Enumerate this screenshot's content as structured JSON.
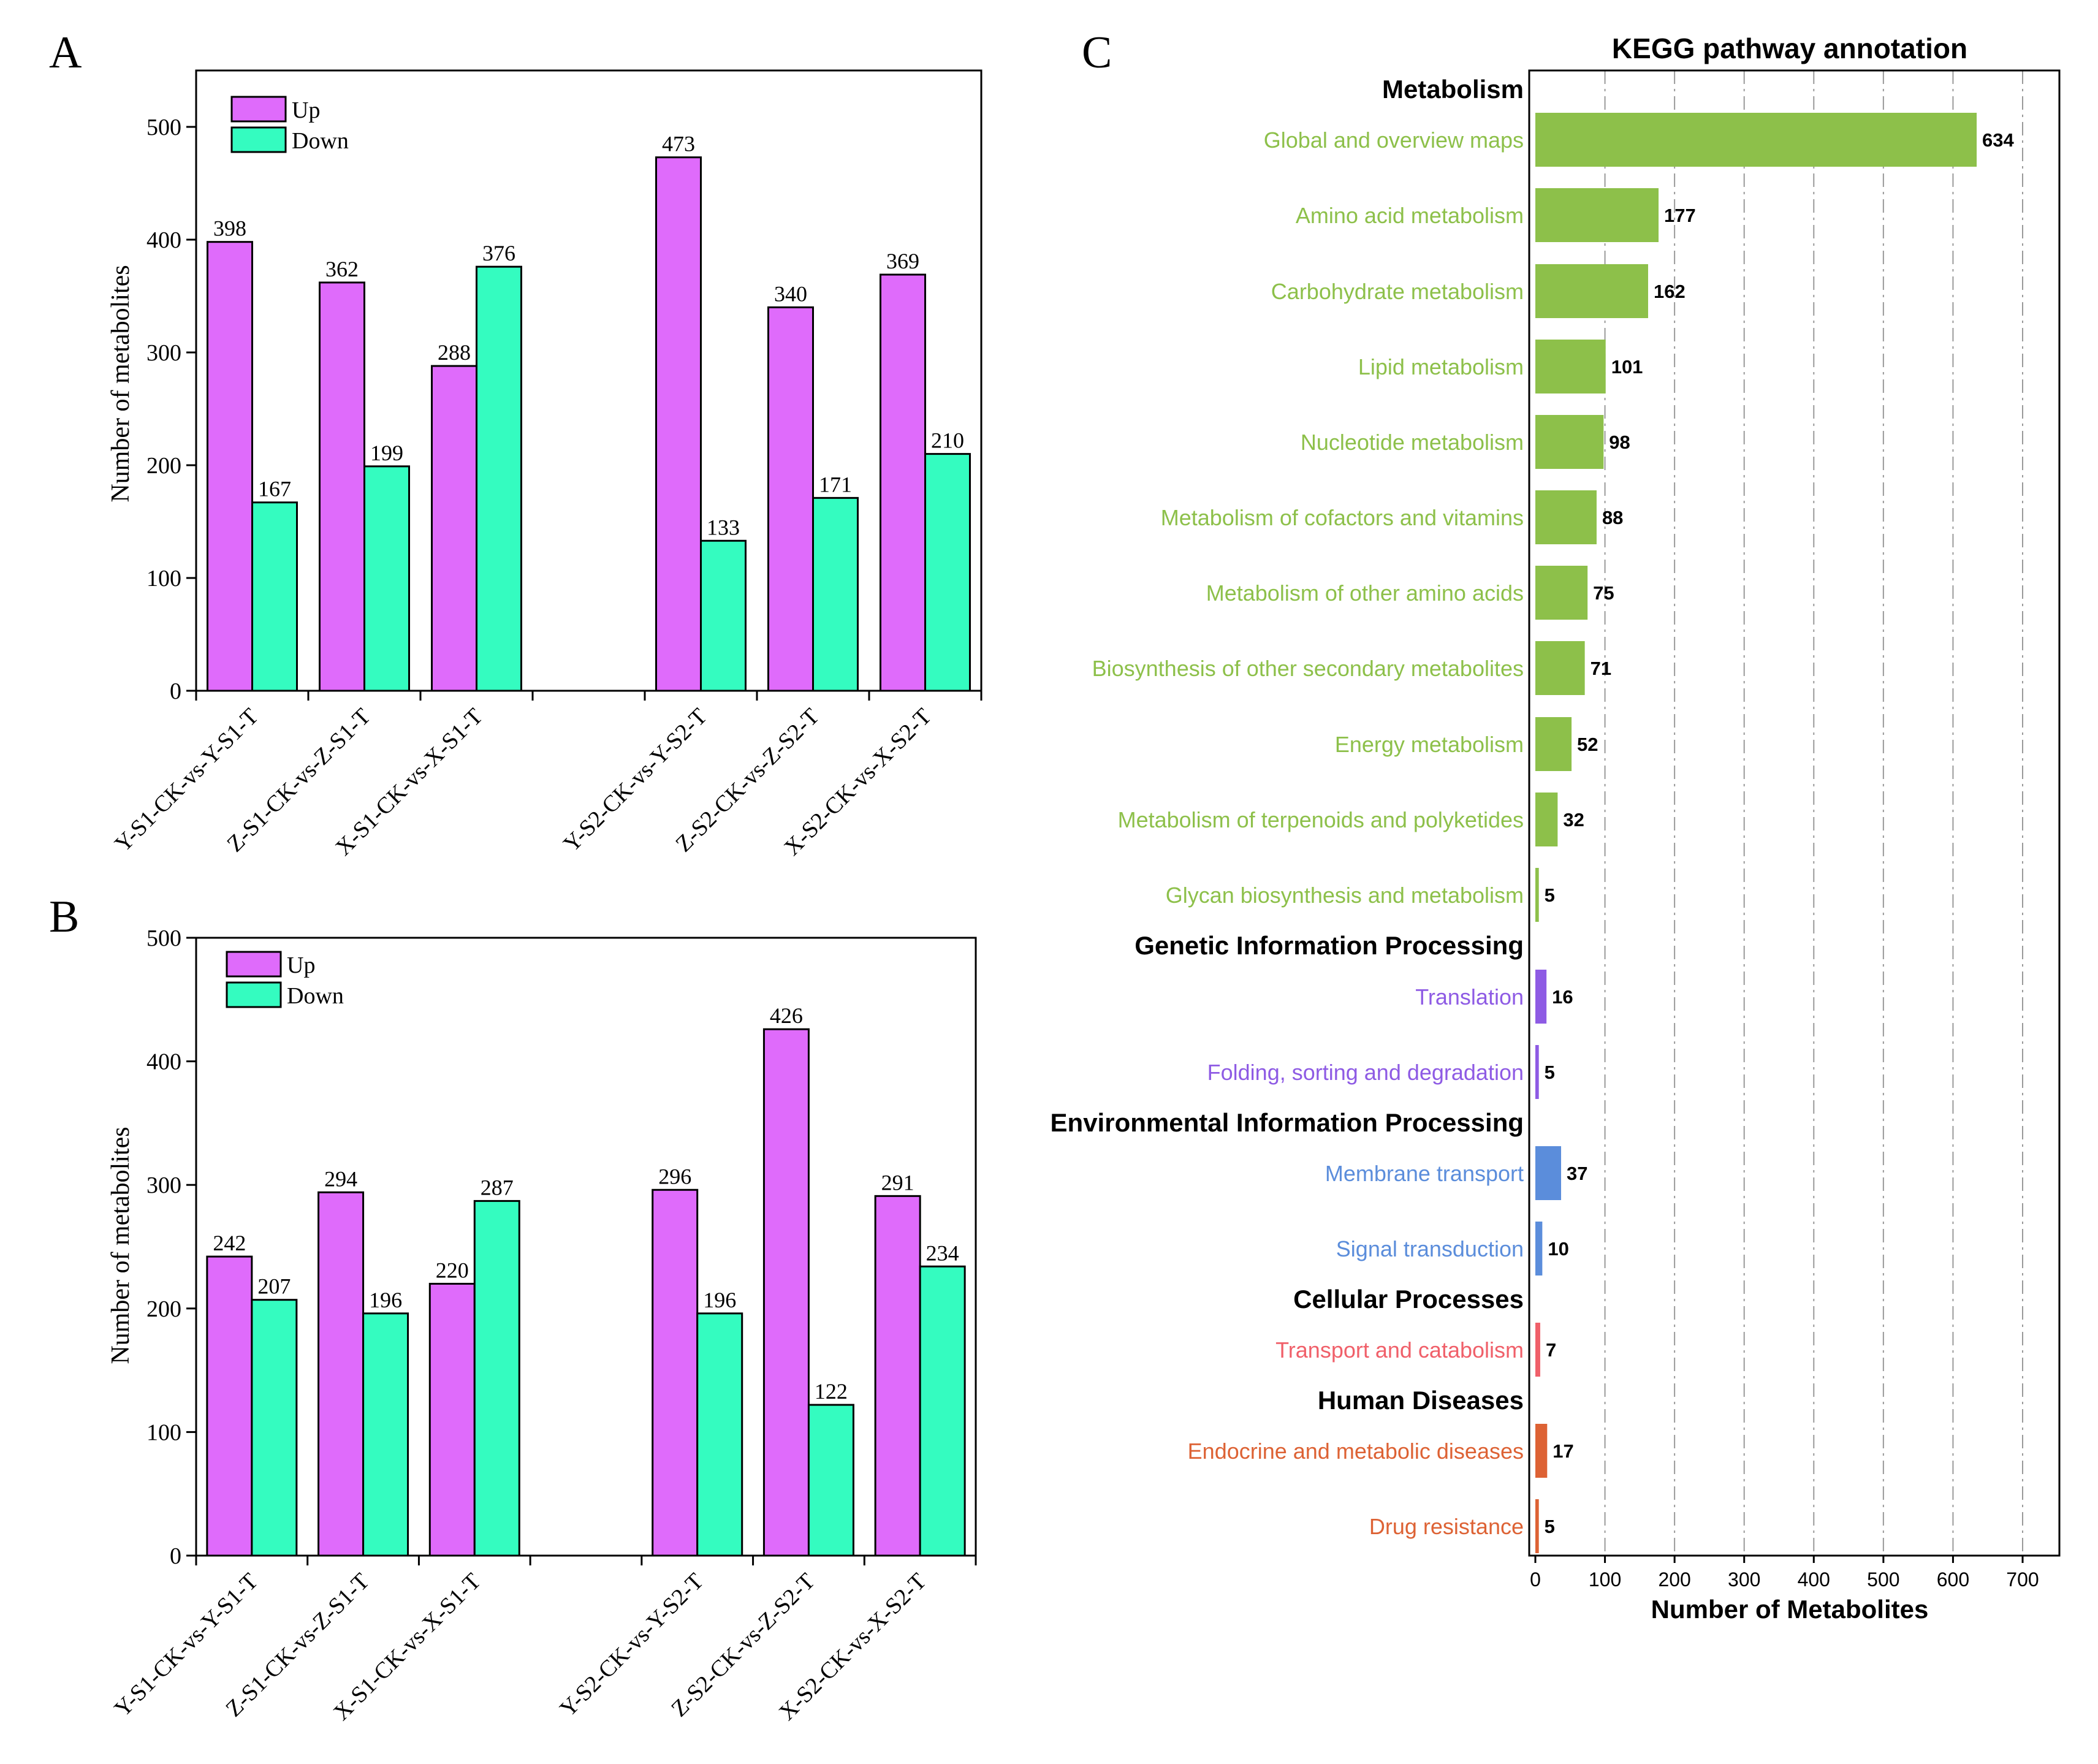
{
  "colors": {
    "up": "#DF6BFB",
    "down": "#34FCC0",
    "axis": "#000000",
    "grid": "#9a9a9a",
    "metabolism": "#8DC04A",
    "genetic": "#8E5BE4",
    "environmental": "#5B8DDB",
    "cellular": "#F0606A",
    "human": "#DD6234"
  },
  "chart_data": [
    {
      "panel": "A",
      "type": "bar",
      "title": "",
      "xlabel": "",
      "ylabel": "Number of metabolites",
      "ylim": [
        0,
        550
      ],
      "yticks": [
        0,
        100,
        200,
        300,
        400,
        500
      ],
      "legend": {
        "position": "top-left",
        "items": [
          "Up",
          "Down"
        ]
      },
      "categories": [
        "Y-S1-CK-vs-Y-S1-T",
        "Z-S1-CK-vs-Z-S1-T",
        "X-S1-CK-vs-X-S1-T",
        "Y-S2-CK-vs-Y-S2-T",
        "Z-S2-CK-vs-Z-S2-T",
        "X-S2-CK-vs-X-S2-T"
      ],
      "series": [
        {
          "name": "Up",
          "values": [
            398,
            362,
            288,
            473,
            340,
            369
          ]
        },
        {
          "name": "Down",
          "values": [
            167,
            199,
            376,
            133,
            171,
            210
          ]
        }
      ]
    },
    {
      "panel": "B",
      "type": "bar",
      "title": "",
      "xlabel": "",
      "ylabel": "Number of metabolites",
      "ylim": [
        0,
        500
      ],
      "yticks": [
        0,
        100,
        200,
        300,
        400,
        500
      ],
      "legend": {
        "position": "top-left",
        "items": [
          "Up",
          "Down"
        ]
      },
      "categories": [
        "Y-S1-CK-vs-Y-S1-T",
        "Z-S1-CK-vs-Z-S1-T",
        "X-S1-CK-vs-X-S1-T",
        "Y-S2-CK-vs-Y-S2-T",
        "Z-S2-CK-vs-Z-S2-T",
        "X-S2-CK-vs-X-S2-T"
      ],
      "series": [
        {
          "name": "Up",
          "values": [
            242,
            294,
            220,
            296,
            426,
            291
          ]
        },
        {
          "name": "Down",
          "values": [
            207,
            196,
            287,
            196,
            122,
            234
          ]
        }
      ]
    },
    {
      "panel": "C",
      "type": "bar",
      "orientation": "horizontal",
      "title": "KEGG pathway annotation",
      "xlabel": "Number of Metabolites",
      "ylabel": "",
      "xlim": [
        0,
        760
      ],
      "xticks": [
        0,
        100,
        200,
        300,
        400,
        500,
        600,
        700
      ],
      "grid": "vertical dashed",
      "groups": [
        {
          "name": "Metabolism",
          "color_key": "metabolism",
          "items": [
            {
              "label": "Global and overview maps",
              "value": 634
            },
            {
              "label": "Amino acid metabolism",
              "value": 177
            },
            {
              "label": "Carbohydrate metabolism",
              "value": 162
            },
            {
              "label": "Lipid metabolism",
              "value": 101
            },
            {
              "label": "Nucleotide metabolism",
              "value": 98
            },
            {
              "label": "Metabolism of cofactors and vitamins",
              "value": 88
            },
            {
              "label": "Metabolism of other amino acids",
              "value": 75
            },
            {
              "label": "Biosynthesis of other secondary metabolites",
              "value": 71
            },
            {
              "label": "Energy metabolism",
              "value": 52
            },
            {
              "label": "Metabolism of terpenoids and polyketides",
              "value": 32
            },
            {
              "label": "Glycan biosynthesis and metabolism",
              "value": 5
            }
          ]
        },
        {
          "name": "Genetic Information Processing",
          "color_key": "genetic",
          "items": [
            {
              "label": "Translation",
              "value": 16
            },
            {
              "label": "Folding, sorting and degradation",
              "value": 5
            }
          ]
        },
        {
          "name": "Environmental Information Processing",
          "color_key": "environmental",
          "items": [
            {
              "label": "Membrane transport",
              "value": 37
            },
            {
              "label": "Signal transduction",
              "value": 10
            }
          ]
        },
        {
          "name": "Cellular Processes",
          "color_key": "cellular",
          "items": [
            {
              "label": "Transport and catabolism",
              "value": 7
            }
          ]
        },
        {
          "name": "Human Diseases",
          "color_key": "human",
          "items": [
            {
              "label": "Endocrine and metabolic diseases",
              "value": 17
            },
            {
              "label": "Drug resistance",
              "value": 5
            }
          ]
        }
      ]
    }
  ]
}
